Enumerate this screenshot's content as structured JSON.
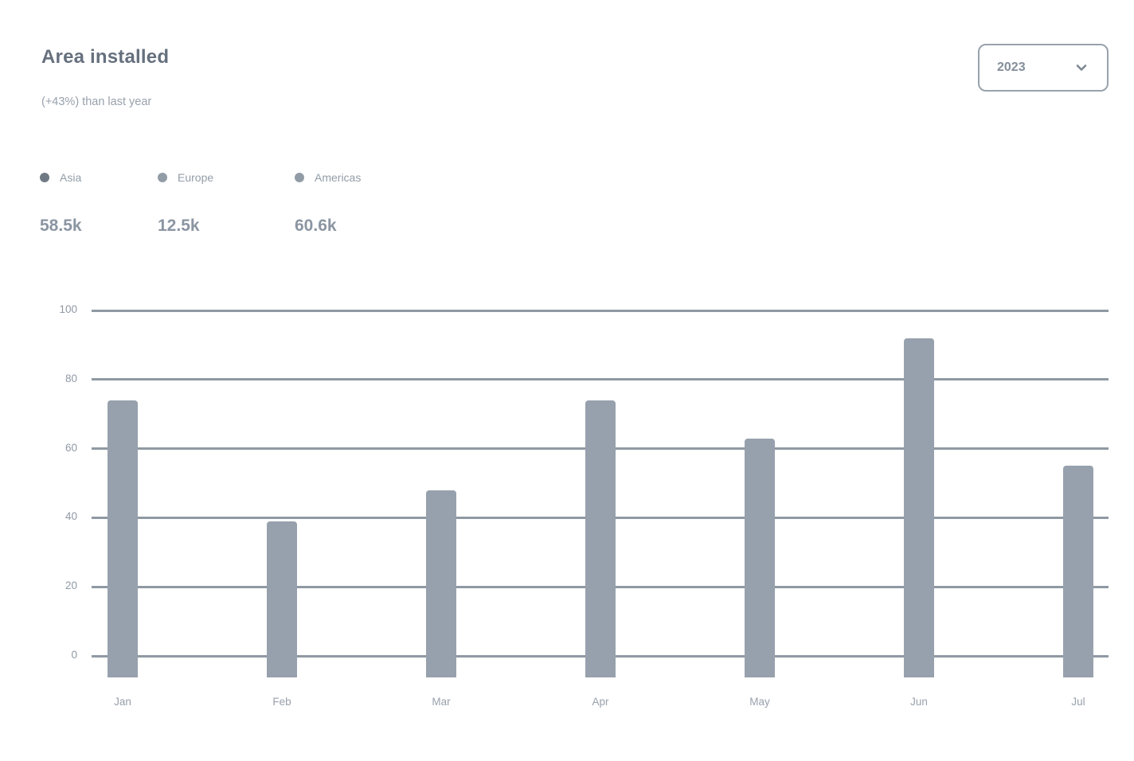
{
  "header": {
    "title": "Area installed",
    "subtitle": "(+43%) than last year",
    "year_select": {
      "label": "2023",
      "icon": "chevron-down-icon"
    }
  },
  "legend": {
    "items": [
      {
        "label": "Asia",
        "value": "58.5k",
        "dot_color": "#6e7984"
      },
      {
        "label": "Europe",
        "value": "12.5k",
        "dot_color": "#929ca6"
      },
      {
        "label": "Americas",
        "value": "60.6k",
        "dot_color": "#929ca6"
      }
    ]
  },
  "chart_data": {
    "type": "bar",
    "title": "Area installed",
    "categories": [
      "Jan",
      "Feb",
      "Mar",
      "Apr",
      "May",
      "Jun",
      "Jul"
    ],
    "series": [
      {
        "name": "Asia",
        "values": [
          74,
          39,
          48,
          74,
          63,
          92,
          55
        ]
      }
    ],
    "xlabel": "",
    "ylabel": "",
    "yticks": [
      0,
      20,
      40,
      60,
      80,
      100
    ],
    "ylim": [
      0,
      100
    ],
    "grid": true,
    "legend_position": "top-left",
    "bar_color": "#97a1ad",
    "gridline_color": "#8f99a3"
  }
}
